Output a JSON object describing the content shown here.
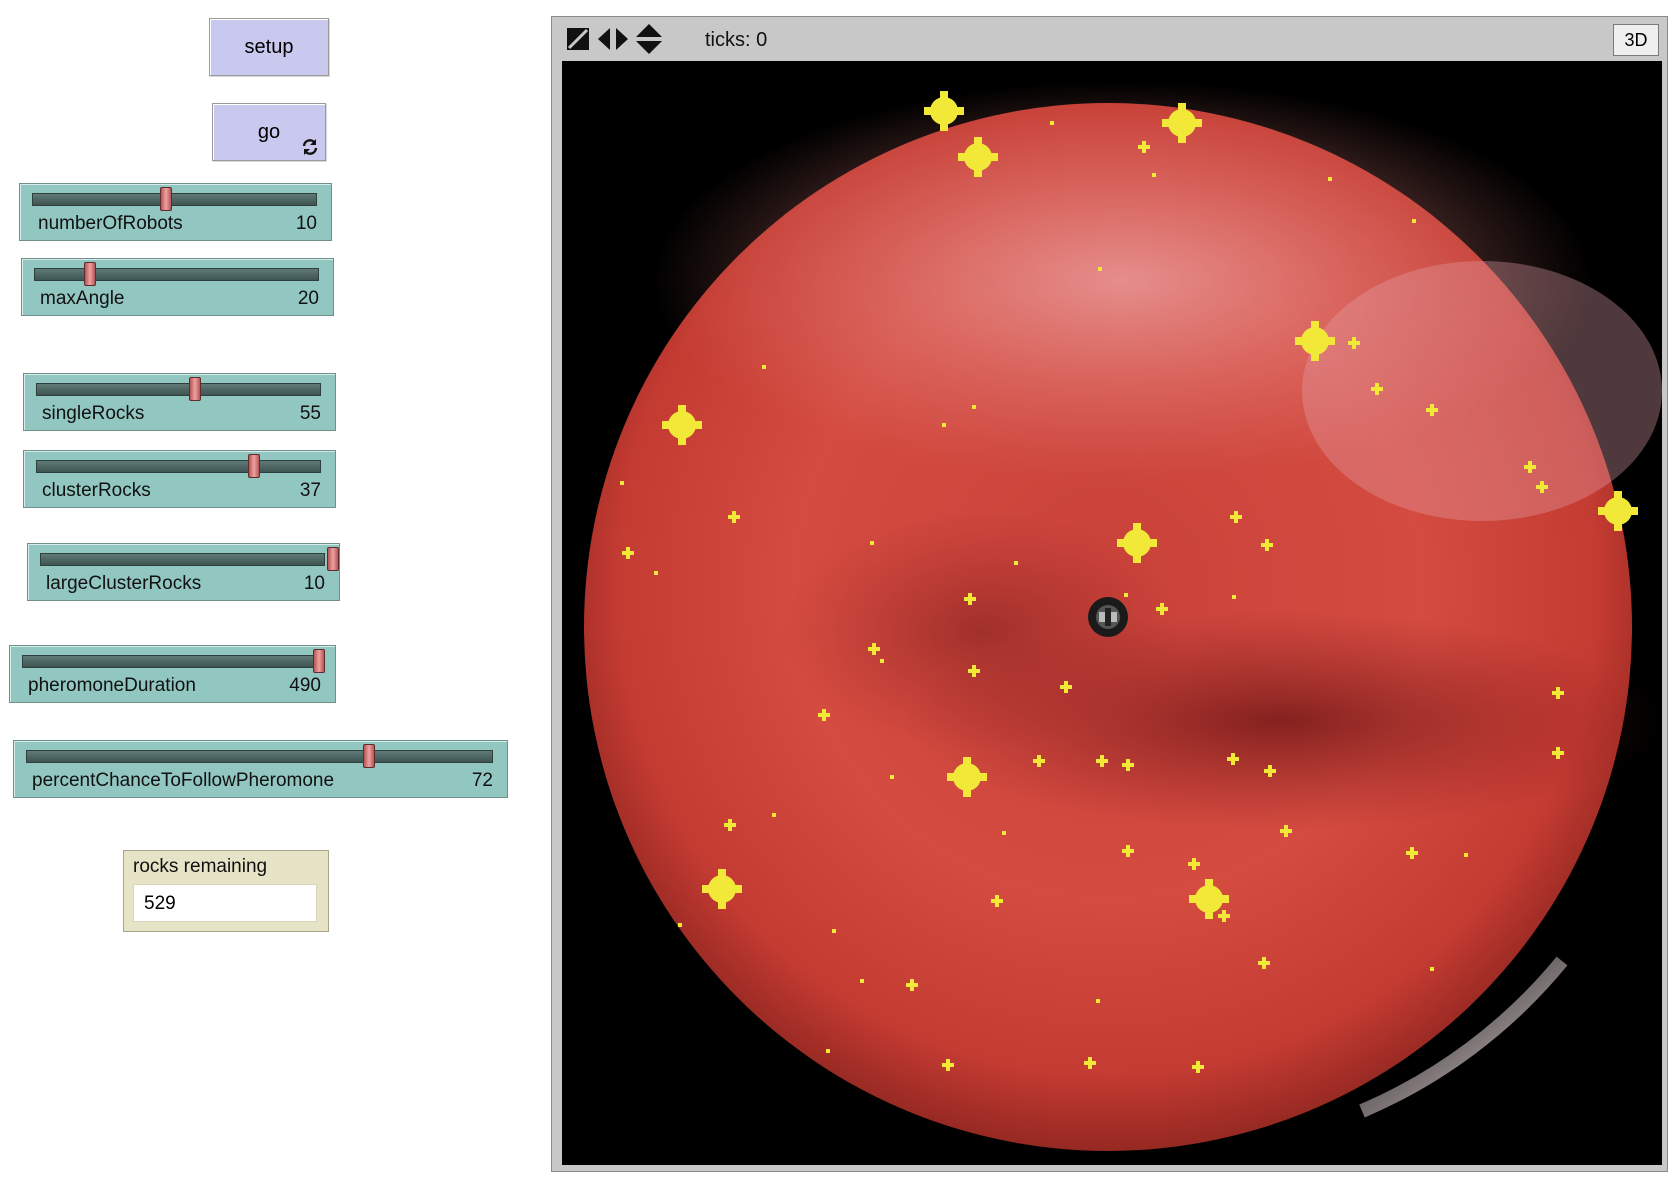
{
  "buttons": {
    "setup": "setup",
    "go": "go"
  },
  "sliders": [
    {
      "label": "numberOfRobots",
      "value": "10",
      "fraction": 0.47
    },
    {
      "label": "maxAngle",
      "value": "20",
      "fraction": 0.22
    },
    {
      "label": "singleRocks",
      "value": "55",
      "fraction": 0.55
    },
    {
      "label": "clusterRocks",
      "value": "37",
      "fraction": 0.74
    },
    {
      "label": "largeClusterRocks",
      "value": "10",
      "fraction": 1.0
    },
    {
      "label": "pheromoneDuration",
      "value": "490",
      "fraction": 0.98
    },
    {
      "label": "percentChanceToFollowPheromone",
      "value": "72",
      "fraction": 0.72
    }
  ],
  "monitor": {
    "label": "rocks remaining",
    "value": "529"
  },
  "view": {
    "ticks_text": "ticks: 0",
    "button_3d": "3D"
  },
  "colors": {
    "button_bg": "#c9c9ef",
    "slider_bg": "#92c7c1",
    "monitor_bg": "#e6e3c6",
    "planet": "#d4453b",
    "rock": "#f2e838"
  },
  "icons": [
    "loop-icon",
    "wrap-both-icon",
    "wrap-horizontal-icon",
    "wrap-vertical-icon"
  ]
}
